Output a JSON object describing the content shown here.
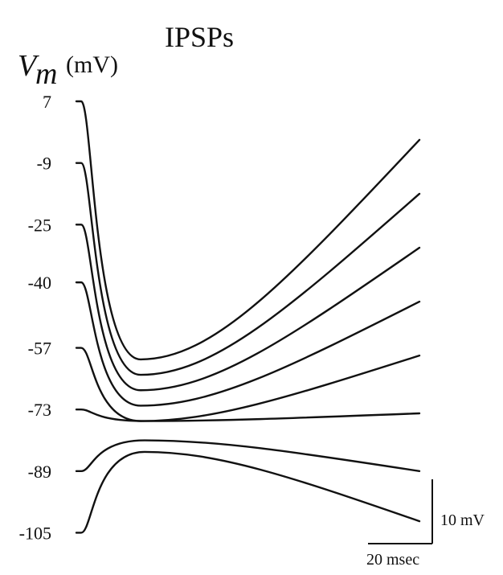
{
  "chart_data": {
    "type": "line",
    "title": "IPSPs",
    "ylabel_symbol": "V",
    "ylabel_subscript": "m",
    "ylabel_unit": "(mV)",
    "holding_potentials_mV": [
      7,
      -9,
      -25,
      -40,
      -57,
      -73,
      -89,
      -105
    ],
    "tick_labels": [
      "7",
      "-9",
      "-25",
      "-40",
      "-57",
      "-73",
      "-89",
      "-105"
    ],
    "series": [
      {
        "holding": 7,
        "peak_mV": -60,
        "end_mV": -3
      },
      {
        "holding": -9,
        "peak_mV": -64,
        "end_mV": -17
      },
      {
        "holding": -25,
        "peak_mV": -68,
        "end_mV": -31
      },
      {
        "holding": -40,
        "peak_mV": -72,
        "end_mV": -45
      },
      {
        "holding": -57,
        "peak_mV": -76,
        "end_mV": -59
      },
      {
        "holding": -73,
        "peak_mV": -76,
        "end_mV": -74
      },
      {
        "holding": -89,
        "peak_mV": -81,
        "end_mV": -89
      },
      {
        "holding": -105,
        "peak_mV": -84,
        "end_mV": -102
      }
    ],
    "scale_bar": {
      "voltage_label": "10 mV",
      "time_label": "20 msec",
      "voltage_mV": 10,
      "time_ms": 20
    },
    "grid": false,
    "legend": "none"
  },
  "figure": {
    "title": "IPSPs",
    "ylabel_symbol": "V",
    "ylabel_subscript": "m",
    "ylabel_unit": "(mV)",
    "scale_voltage": "10 mV",
    "scale_time": "20 msec"
  }
}
